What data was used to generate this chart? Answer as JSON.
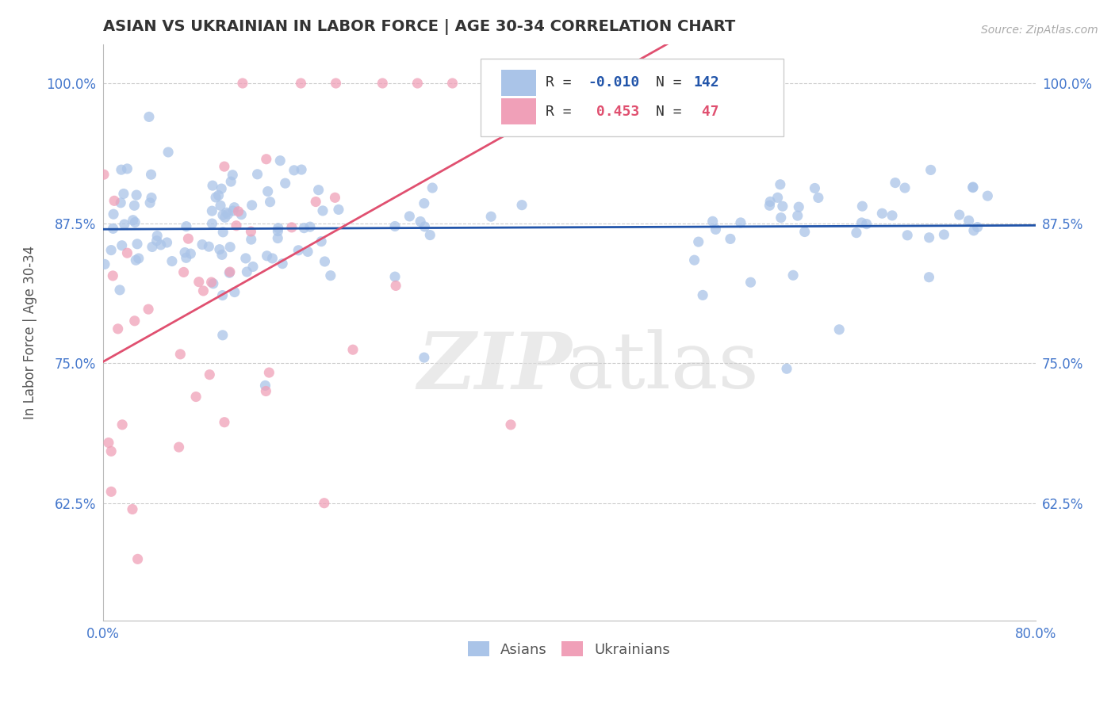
{
  "title": "ASIAN VS UKRAINIAN IN LABOR FORCE | AGE 30-34 CORRELATION CHART",
  "source_text": "Source: ZipAtlas.com",
  "ylabel": "In Labor Force | Age 30-34",
  "xlim": [
    0.0,
    0.8
  ],
  "ylim": [
    0.52,
    1.035
  ],
  "yticks": [
    0.625,
    0.75,
    0.875,
    1.0
  ],
  "ytick_labels": [
    "62.5%",
    "75.0%",
    "87.5%",
    "100.0%"
  ],
  "xticks": [
    0.0,
    0.1,
    0.2,
    0.3,
    0.4,
    0.5,
    0.6,
    0.7,
    0.8
  ],
  "asian_R": -0.01,
  "asian_N": 142,
  "ukrainian_R": 0.453,
  "ukrainian_N": 47,
  "asian_color": "#aac4e8",
  "ukrainian_color": "#f0a0b8",
  "asian_line_color": "#2255aa",
  "ukrainian_line_color": "#e05070",
  "background_color": "#ffffff",
  "grid_color": "#cccccc",
  "title_color": "#333333",
  "axis_label_color": "#4477cc"
}
